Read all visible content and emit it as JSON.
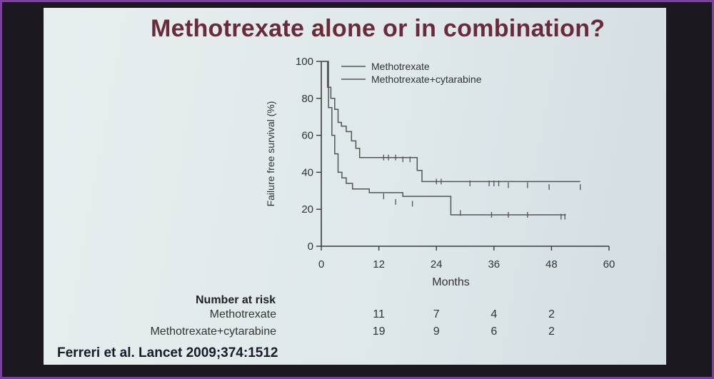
{
  "slide": {
    "title": "Methotrexate alone or in combination?",
    "citation": "Ferreri et al. Lancet 2009;374:1512"
  },
  "chart_data": {
    "type": "line",
    "xlabel": "Months",
    "ylabel": "Failure free survival (%)",
    "xlim": [
      0,
      60
    ],
    "ylim": [
      0,
      100
    ],
    "xticks": [
      0,
      12,
      24,
      36,
      48,
      60
    ],
    "yticks": [
      0,
      20,
      40,
      60,
      80,
      100
    ],
    "legend_position": "top",
    "series": [
      {
        "name": "Methotrexate",
        "color": "#555555",
        "x": [
          0,
          1.5,
          1.5,
          2.2,
          2.2,
          2.8,
          2.8,
          3.5,
          3.5,
          4.3,
          4.3,
          5.2,
          5.2,
          6.5,
          6.5,
          10,
          10,
          17,
          17,
          27,
          27,
          51
        ],
        "y": [
          100,
          100,
          75,
          75,
          60,
          60,
          50,
          50,
          40,
          40,
          37,
          37,
          34,
          34,
          31,
          31,
          29,
          29,
          27,
          27,
          17,
          17
        ],
        "censor_x": [
          13,
          15.5,
          19,
          29,
          35.5,
          39,
          43,
          50,
          50.8
        ],
        "censor_y": [
          27,
          24,
          23,
          18,
          17,
          17,
          17,
          16,
          16
        ]
      },
      {
        "name": "Methotrexate+cytarabine",
        "color": "#555555",
        "x": [
          0,
          1.3,
          1.3,
          2.0,
          2.0,
          2.8,
          2.8,
          3.5,
          3.5,
          4.2,
          4.2,
          5.2,
          5.2,
          6.3,
          6.3,
          7.2,
          7.2,
          8.0,
          8.0,
          20,
          20,
          21,
          21,
          54
        ],
        "y": [
          100,
          100,
          86,
          86,
          80,
          80,
          74,
          74,
          67,
          67,
          65,
          65,
          62,
          62,
          57,
          57,
          53,
          53,
          48,
          48,
          41,
          41,
          35,
          35
        ],
        "censor_x": [
          13,
          14,
          15.5,
          17,
          18.5,
          24,
          25,
          31,
          35,
          36,
          37,
          39,
          43,
          47.5,
          54
        ],
        "censor_y": [
          48,
          48,
          48,
          47,
          47,
          35,
          35,
          34,
          34,
          34,
          34,
          33,
          33,
          32,
          32
        ]
      }
    ]
  },
  "risk_table": {
    "title": "Number at risk",
    "rows": [
      {
        "label": "Methotrexate",
        "values": [
          "11",
          "7",
          "4",
          "2"
        ]
      },
      {
        "label": "Methotrexate+cytarabine",
        "values": [
          "19",
          "9",
          "6",
          "2"
        ]
      }
    ],
    "at_months": [
      12,
      24,
      36,
      48
    ]
  }
}
